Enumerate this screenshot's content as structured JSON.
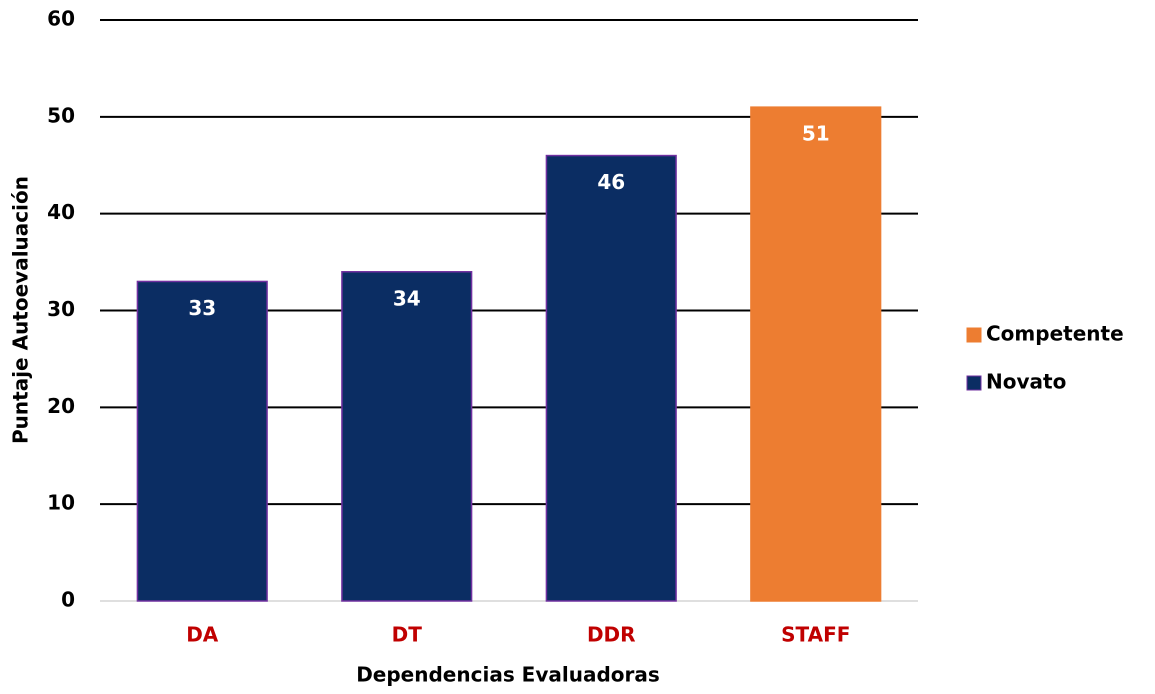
{
  "chart_data": {
    "type": "bar",
    "xlabel": "Dependencias Evaluadoras",
    "ylabel": "Puntaje Autoevaluación",
    "categories": [
      "DA",
      "DT",
      "DDR",
      "STAFF"
    ],
    "series": [
      {
        "name": "Competente",
        "color": "#ed7d31",
        "values": [
          null,
          null,
          null,
          51
        ]
      },
      {
        "name": "Novato",
        "color": "#0b2d63",
        "values": [
          33,
          34,
          46,
          null
        ]
      }
    ],
    "ylim": [
      0,
      60
    ],
    "yticks": [
      0,
      10,
      20,
      30,
      40,
      50,
      60
    ],
    "grid": true,
    "legend": "right"
  }
}
